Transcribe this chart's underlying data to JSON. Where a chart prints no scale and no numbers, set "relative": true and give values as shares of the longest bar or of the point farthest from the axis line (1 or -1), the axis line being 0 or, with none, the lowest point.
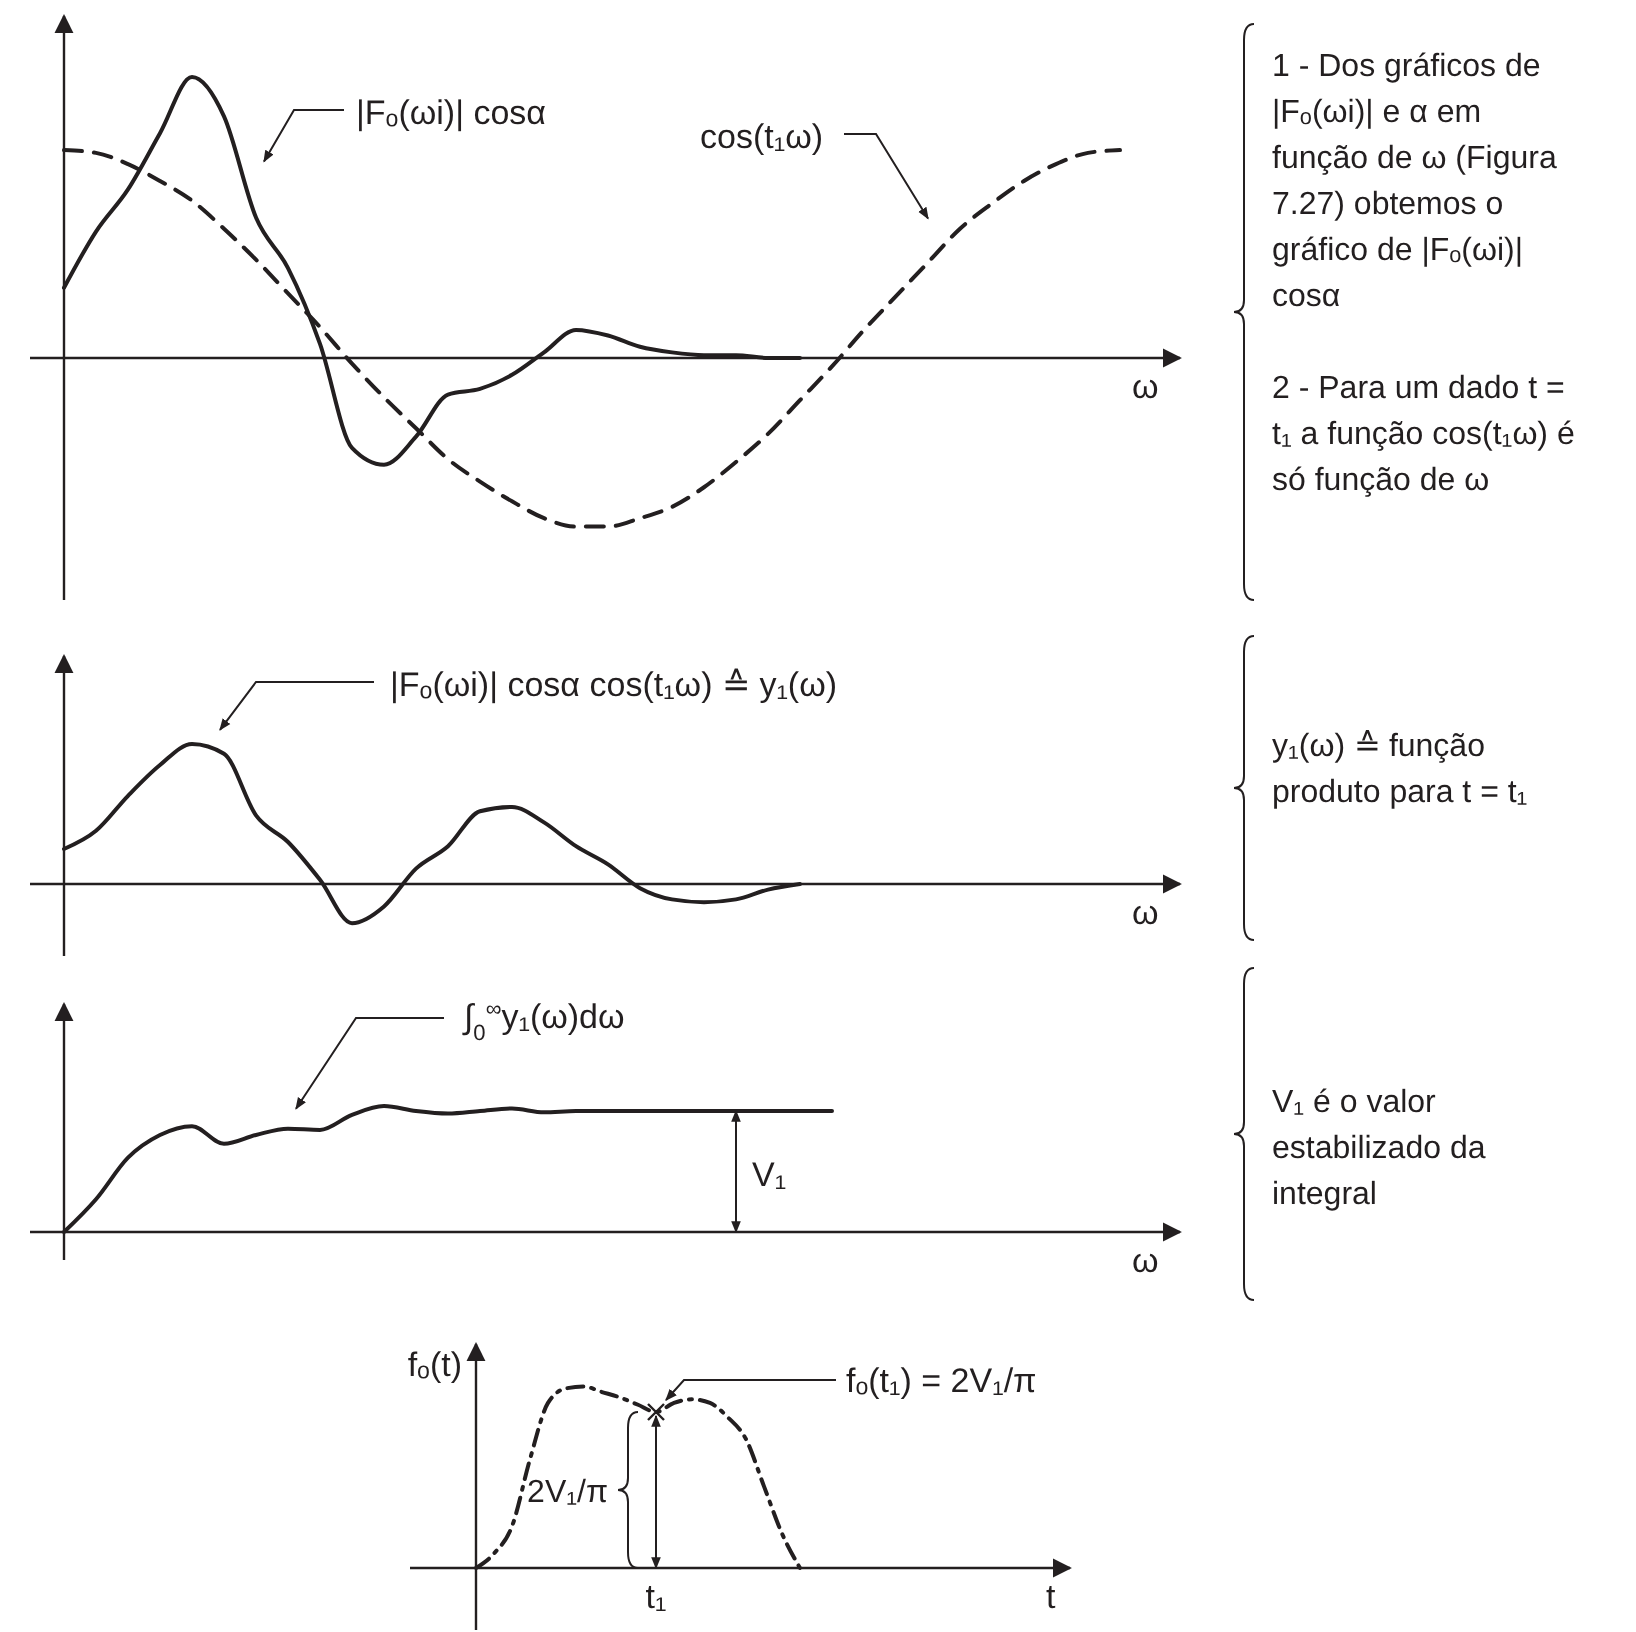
{
  "chart_data": [
    {
      "type": "line",
      "relative": true,
      "xlabel": "ω",
      "categories": [
        null,
        null,
        null,
        null,
        null,
        null,
        null,
        null,
        null,
        null,
        null,
        null,
        null,
        null,
        null,
        null,
        null,
        null,
        null,
        null,
        null,
        null,
        null,
        null,
        null,
        null,
        null,
        null,
        null,
        null,
        null,
        null,
        null,
        null,
        null
      ],
      "series": [
        {
          "name": "|Fₒ(ωi)| cosα",
          "color": "#231f20",
          "line_style": "solid",
          "values": [
            0.25,
            0.45,
            0.6,
            0.8,
            1.0,
            0.86,
            0.5,
            0.32,
            0.05,
            -0.32,
            -0.38,
            -0.28,
            -0.13,
            -0.11,
            -0.06,
            0.02,
            0.1,
            0.08,
            0.04,
            0.02,
            0.01,
            0.01,
            0,
            0,
            null,
            null,
            null,
            null,
            null,
            null,
            null,
            null,
            null,
            null,
            null
          ]
        },
        {
          "name": "cos(t₁ω)",
          "color": "#231f20",
          "line_style": "dashed",
          "values": [
            0.74,
            0.73,
            0.69,
            0.63,
            0.56,
            0.46,
            0.35,
            0.23,
            0.11,
            -0.02,
            -0.14,
            -0.25,
            -0.36,
            -0.44,
            -0.51,
            -0.57,
            -0.6,
            -0.6,
            -0.57,
            -0.53,
            -0.46,
            -0.37,
            -0.27,
            -0.15,
            -0.03,
            0.1,
            0.22,
            0.34,
            0.46,
            0.55,
            0.63,
            0.69,
            0.73,
            0.74,
            null
          ]
        }
      ],
      "annotations": [
        "1 - Dos gráficos de |Fₒ(ωi)| e α em função de ω (Figura 7.27) obtemos o gráfico de |Fₒ(ωi)| cosα",
        "2 - Para um dado t = t₁ a função cos(t₁ω) é só função de ω"
      ]
    },
    {
      "type": "line",
      "relative": true,
      "xlabel": "ω",
      "categories": [
        null,
        null,
        null,
        null,
        null,
        null,
        null,
        null,
        null,
        null,
        null,
        null,
        null,
        null,
        null,
        null,
        null,
        null,
        null,
        null,
        null,
        null,
        null,
        null,
        null,
        null,
        null,
        null,
        null,
        null,
        null,
        null,
        null,
        null,
        null
      ],
      "series": [
        {
          "name": "|Fₒ(ωi)| cosα cos(t₁ω) ≙ y₁(ω)",
          "color": "#231f20",
          "line_style": "solid",
          "values": [
            0.25,
            0.38,
            0.63,
            0.85,
            1.0,
            0.93,
            0.49,
            0.3,
            0.03,
            -0.28,
            -0.16,
            0.11,
            0.27,
            0.52,
            0.55,
            0.44,
            0.27,
            0.14,
            -0.03,
            -0.11,
            -0.13,
            -0.11,
            -0.04,
            0,
            null,
            null,
            null,
            null,
            null,
            null,
            null,
            null,
            null,
            null,
            null
          ]
        }
      ],
      "annotations": [
        "y₁(ω) ≙ função produto para t = t₁"
      ]
    },
    {
      "type": "line",
      "relative": true,
      "xlabel": "ω",
      "categories": [
        null,
        null,
        null,
        null,
        null,
        null,
        null,
        null,
        null,
        null,
        null,
        null,
        null,
        null,
        null,
        null,
        null,
        null,
        null,
        null,
        null,
        null,
        null,
        null,
        null,
        null,
        null,
        null,
        null,
        null,
        null,
        null,
        null,
        null,
        null
      ],
      "series": [
        {
          "name": "∫$_{0}$$^{∞}$y₁(ω)dω",
          "color": "#231f20",
          "line_style": "solid",
          "values": [
            0,
            0.26,
            0.59,
            0.77,
            0.84,
            0.7,
            0.77,
            0.82,
            0.81,
            0.93,
            1.0,
            0.96,
            0.94,
            0.96,
            0.98,
            0.95,
            0.96,
            0.96,
            0.96,
            0.96,
            0.96,
            0.96,
            0.96,
            0.96,
            0.96,
            null,
            null,
            null,
            null,
            null,
            null,
            null,
            null,
            null,
            null
          ]
        }
      ],
      "annotations": [
        {
          "text": "V₁",
          "y": 0.96
        },
        "V₁ é o valor estabilizado da integral"
      ]
    },
    {
      "type": "line",
      "relative": true,
      "xlabel": "t",
      "ylabel": "fₒ(t)",
      "categories": [
        null,
        null,
        null,
        null,
        null,
        null,
        null,
        null,
        null,
        null,
        null,
        null,
        null,
        null,
        null,
        null,
        null,
        null,
        null,
        null,
        null,
        null,
        null,
        null,
        null,
        null,
        null,
        null,
        null,
        null,
        null,
        null,
        null
      ],
      "series": [
        {
          "color": "#231f20",
          "line_style": "dotted",
          "values": [
            0,
            0.08,
            0.23,
            0.6,
            0.91,
            0.99,
            1.0,
            0.97,
            0.94,
            0.9,
            0.86,
            0.91,
            0.93,
            0.91,
            0.83,
            0.71,
            0.45,
            0.19,
            0,
            null,
            null,
            null,
            null,
            null,
            null,
            null,
            null,
            null,
            null,
            null,
            null,
            null,
            null
          ]
        }
      ],
      "annotations": [
        "fₒ(t₁) = 2V₁/π",
        "2V₁/π",
        "t₁"
      ]
    }
  ]
}
